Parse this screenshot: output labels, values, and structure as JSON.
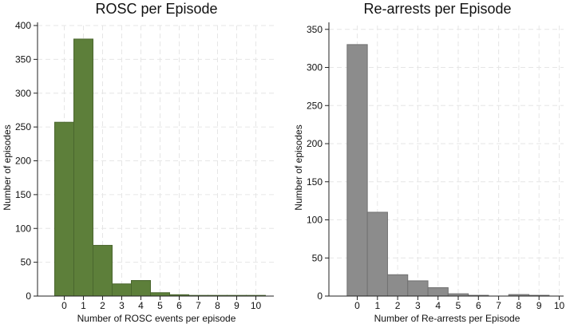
{
  "chart_data": [
    {
      "type": "bar",
      "title": "ROSC per Episode",
      "xlabel": "Number of ROSC events per episode",
      "ylabel": "Number of episodes",
      "categories": [
        "0",
        "1",
        "2",
        "3",
        "4",
        "5",
        "6",
        "7",
        "8",
        "9",
        "10"
      ],
      "x_tick_labels": [
        "0",
        "1",
        "2",
        "3",
        "4",
        "5",
        "6",
        "7",
        "8",
        "9",
        "10"
      ],
      "values": [
        257,
        380,
        75,
        18,
        23,
        5,
        2,
        1,
        1,
        1,
        1
      ],
      "y_ticks": [
        0,
        50,
        100,
        150,
        200,
        250,
        300,
        350,
        400
      ],
      "y_tick_labels": [
        "0",
        "50",
        "100",
        "150",
        "200",
        "250",
        "300",
        "350",
        "400"
      ],
      "ylim": [
        0,
        400
      ],
      "color": "#5d7f3a",
      "grid": true
    },
    {
      "type": "bar",
      "title": "Re-arrests per Episode",
      "xlabel": "Number of Re-arrests per Episode",
      "ylabel": "Number of episodes",
      "categories": [
        "0",
        "1",
        "2",
        "3",
        "4",
        "5",
        "6",
        "7",
        "8",
        "9",
        "10"
      ],
      "x_tick_labels": [
        "0",
        "1",
        "2",
        "3",
        "4",
        "5",
        "6",
        "7",
        "8",
        "9",
        "10"
      ],
      "values": [
        330,
        110,
        28,
        20,
        11,
        3,
        1,
        0,
        2,
        1,
        0
      ],
      "y_ticks": [
        0,
        50,
        100,
        150,
        200,
        250,
        300,
        350
      ],
      "y_tick_labels": [
        "0",
        "50",
        "100",
        "150",
        "200",
        "250",
        "300",
        "350"
      ],
      "ylim": [
        0,
        355
      ],
      "color": "#8c8c8c",
      "grid": true
    }
  ]
}
